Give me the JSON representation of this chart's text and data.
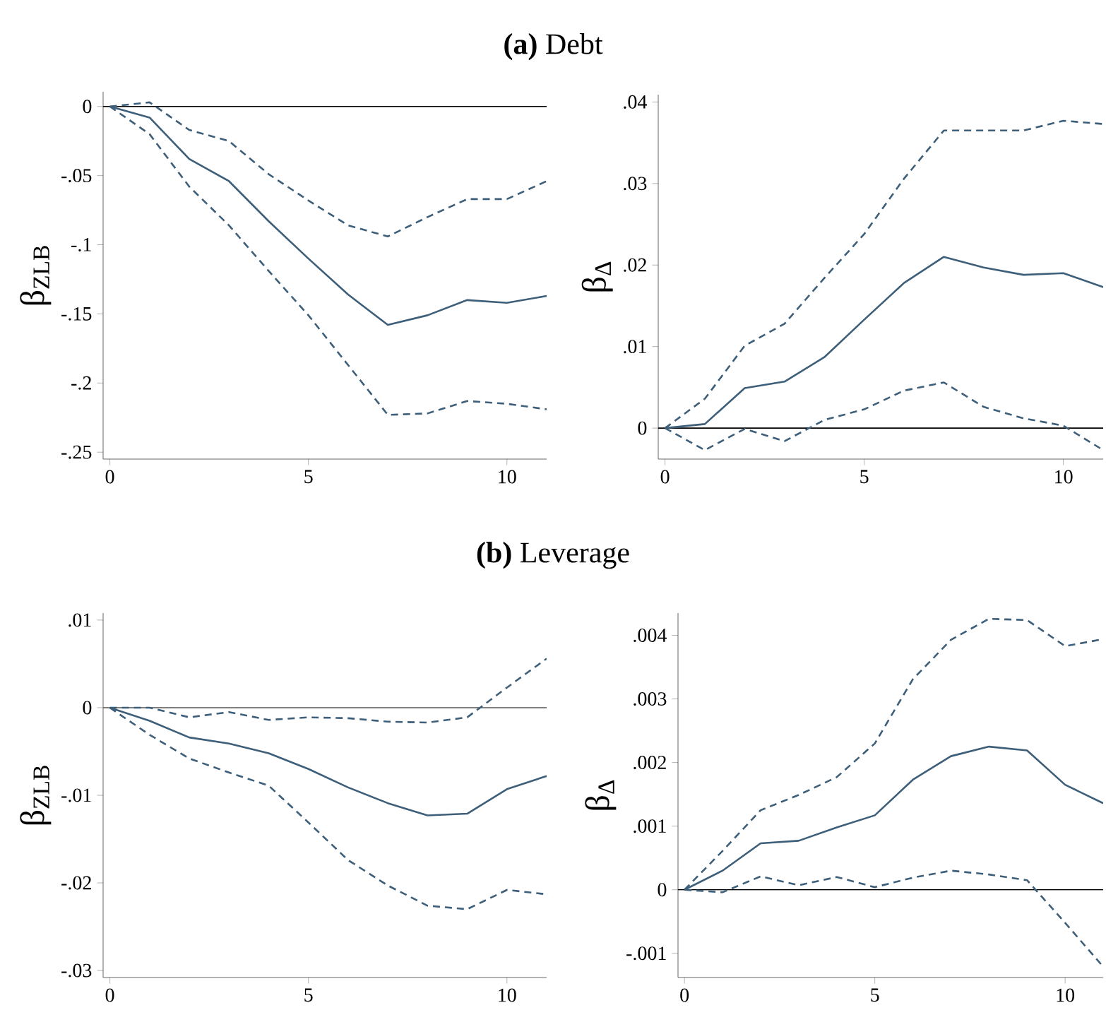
{
  "chart_data": [
    {
      "type": "line",
      "title": "**(a)** Debt",
      "ylabel": "β$_{ZLB}$",
      "x": [
        0,
        1,
        2,
        3,
        4,
        5,
        6,
        7,
        8,
        9,
        10,
        11
      ],
      "xlim": [
        -0.17,
        11
      ],
      "ylim": [
        -0.255,
        0.0106
      ],
      "xticks": [
        0,
        5,
        10
      ],
      "yticks": [
        {
          "value": 0,
          "label": "0"
        },
        {
          "value": -0.05,
          "label": "-.05"
        },
        {
          "value": -0.1,
          "label": "-.1"
        },
        {
          "value": -0.15,
          "label": "-.15"
        },
        {
          "value": -0.2,
          "label": "-.2"
        },
        {
          "value": -0.25,
          "label": "-.25"
        }
      ],
      "ref_lines": [
        {
          "axis": "y",
          "value": 0,
          "color": "#000000"
        }
      ],
      "series": [
        {
          "color": "#3e5f7a",
          "line_style": "dashed",
          "values": [
            0,
            0.003,
            -0.017,
            -0.025,
            -0.049,
            -0.068,
            -0.086,
            -0.094,
            -0.08,
            -0.067,
            -0.067,
            -0.054
          ]
        },
        {
          "color": "#3e5f7a",
          "line_style": "solid",
          "values": [
            0,
            -0.008,
            -0.038,
            -0.054,
            -0.083,
            -0.11,
            -0.136,
            -0.158,
            -0.151,
            -0.14,
            -0.142,
            -0.137
          ]
        },
        {
          "color": "#3e5f7a",
          "line_style": "dashed",
          "values": [
            0,
            -0.02,
            -0.058,
            -0.086,
            -0.119,
            -0.151,
            -0.187,
            -0.223,
            -0.222,
            -0.213,
            -0.215,
            -0.219
          ]
        }
      ]
    },
    {
      "type": "line",
      "ylabel": "β$_{Δ}$",
      "x": [
        0,
        1,
        2,
        3,
        4,
        5,
        6,
        7,
        8,
        9,
        10,
        11
      ],
      "xlim": [
        -0.17,
        11
      ],
      "ylim": [
        -0.0038,
        0.0409
      ],
      "xticks": [
        0,
        5,
        10
      ],
      "yticks": [
        {
          "value": 0,
          "label": "0"
        },
        {
          "value": 0.01,
          "label": ".01"
        },
        {
          "value": 0.02,
          "label": ".02"
        },
        {
          "value": 0.03,
          "label": ".03"
        },
        {
          "value": 0.04,
          "label": ".04"
        }
      ],
      "ref_lines": [
        {
          "axis": "y",
          "value": 0,
          "color": "#000000"
        }
      ],
      "series": [
        {
          "color": "#3e5f7a",
          "line_style": "dashed",
          "values": [
            0,
            0.0036,
            0.0101,
            0.0128,
            0.0184,
            0.0238,
            0.0306,
            0.0365,
            0.0365,
            0.0365,
            0.0377,
            0.0373
          ]
        },
        {
          "color": "#3e5f7a",
          "line_style": "solid",
          "values": [
            0,
            0.0005,
            0.0049,
            0.0057,
            0.0087,
            0.0133,
            0.0178,
            0.021,
            0.0197,
            0.0188,
            0.019,
            0.0173
          ]
        },
        {
          "color": "#3e5f7a",
          "line_style": "dashed",
          "values": [
            0,
            -0.0027,
            -0.0001,
            -0.0016,
            0.001,
            0.0023,
            0.0046,
            0.0056,
            0.0026,
            0.0012,
            0.0003,
            -0.0027
          ]
        }
      ]
    },
    {
      "type": "line",
      "title": "**(b)** Leverage",
      "ylabel": "β$_{ZLB}$",
      "x": [
        0,
        1,
        2,
        3,
        4,
        5,
        6,
        7,
        8,
        9,
        10,
        11
      ],
      "xlim": [
        -0.17,
        11
      ],
      "ylim": [
        -0.0308,
        0.0108
      ],
      "xticks": [
        0,
        5,
        10
      ],
      "yticks": [
        {
          "value": 0.01,
          "label": ".01"
        },
        {
          "value": 0,
          "label": "0"
        },
        {
          "value": -0.01,
          "label": "-.01"
        },
        {
          "value": -0.02,
          "label": "-.02"
        },
        {
          "value": -0.03,
          "label": "-.03"
        }
      ],
      "ref_lines": [
        {
          "axis": "y",
          "value": 0,
          "color": "#555555"
        }
      ],
      "series": [
        {
          "color": "#3e5f7a",
          "line_style": "dashed",
          "values": [
            0,
            0,
            -0.0011,
            -0.0005,
            -0.0014,
            -0.0011,
            -0.0012,
            -0.0016,
            -0.0017,
            -0.0011,
            0.0023,
            0.0056
          ]
        },
        {
          "color": "#3e5f7a",
          "line_style": "solid",
          "values": [
            0,
            -0.0015,
            -0.0034,
            -0.0041,
            -0.0052,
            -0.007,
            -0.0091,
            -0.0109,
            -0.0123,
            -0.0121,
            -0.0093,
            -0.0078
          ]
        },
        {
          "color": "#3e5f7a",
          "line_style": "dashed",
          "values": [
            0,
            -0.0031,
            -0.0058,
            -0.0074,
            -0.0089,
            -0.0131,
            -0.0174,
            -0.0203,
            -0.0226,
            -0.023,
            -0.0208,
            -0.0213
          ]
        }
      ]
    },
    {
      "type": "line",
      "ylabel": "β$_{Δ}$",
      "x": [
        0,
        1,
        2,
        3,
        4,
        5,
        6,
        7,
        8,
        9,
        10,
        11
      ],
      "xlim": [
        -0.17,
        11
      ],
      "ylim": [
        -0.00138,
        0.00435
      ],
      "xticks": [
        0,
        5,
        10
      ],
      "yticks": [
        {
          "value": 0.004,
          "label": ".004"
        },
        {
          "value": 0.003,
          "label": ".003"
        },
        {
          "value": 0.002,
          "label": ".002"
        },
        {
          "value": 0.001,
          "label": ".001"
        },
        {
          "value": 0,
          "label": "0"
        },
        {
          "value": -0.001,
          "label": "-.001"
        }
      ],
      "ref_lines": [
        {
          "axis": "y",
          "value": 0,
          "color": "#000000"
        }
      ],
      "series": [
        {
          "color": "#3e5f7a",
          "line_style": "dashed",
          "values": [
            0,
            0.00061,
            0.00125,
            0.00149,
            0.00177,
            0.0023,
            0.00331,
            0.00393,
            0.00426,
            0.00424,
            0.00383,
            0.00394
          ]
        },
        {
          "color": "#3e5f7a",
          "line_style": "solid",
          "values": [
            0,
            0.0003,
            0.00073,
            0.00077,
            0.00098,
            0.00117,
            0.00173,
            0.0021,
            0.00225,
            0.00219,
            0.00165,
            0.00136
          ]
        },
        {
          "color": "#3e5f7a",
          "line_style": "dashed",
          "values": [
            0,
            -4e-05,
            0.00021,
            7e-05,
            0.0002,
            4e-05,
            0.00019,
            0.0003,
            0.00024,
            0.00015,
            -0.00052,
            -0.00121
          ]
        }
      ]
    }
  ]
}
